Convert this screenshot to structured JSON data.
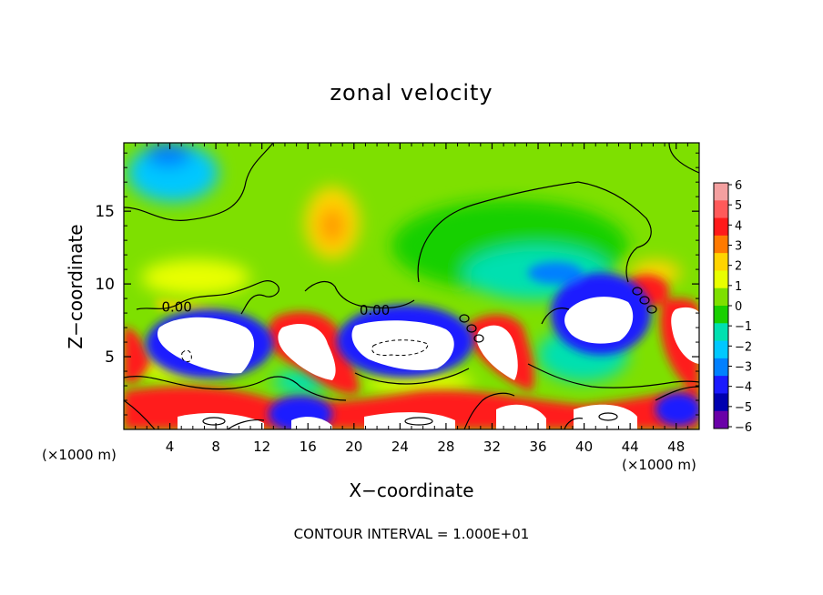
{
  "chart_data": {
    "type": "heatmap",
    "title": "zonal velocity",
    "xlabel": "X−coordinate",
    "ylabel": "Z−coordinate",
    "x_unit_label": "(×1000 m)",
    "x_ticks": [
      4,
      8,
      12,
      16,
      20,
      24,
      28,
      32,
      36,
      40,
      44,
      48
    ],
    "y_ticks": [
      5,
      10,
      15
    ],
    "xlim": [
      0,
      50
    ],
    "ylim": [
      0,
      19.7
    ],
    "colorbar": {
      "ticks": [
        6,
        5,
        4,
        3,
        2,
        1,
        0,
        -1,
        -2,
        -3,
        -4,
        -5,
        -6
      ],
      "tick_labels": [
        "6",
        "5",
        "4",
        "3",
        "2",
        "1",
        "0",
        "−1",
        "−2",
        "−3",
        "−4",
        "−5",
        "−6"
      ],
      "colors": [
        "#f4a0a0",
        "#ff5a5a",
        "#ff1a1a",
        "#ff7a00",
        "#ffd400",
        "#e9ff00",
        "#7ee000",
        "#19d000",
        "#00e0b0",
        "#00c8ff",
        "#0080ff",
        "#1a1aff",
        "#0000b0",
        "#6a00a8"
      ]
    },
    "contour_labels": [
      {
        "text": "0.00",
        "x": 4.6,
        "z": 8.4
      },
      {
        "text": "0.00",
        "x": 21.8,
        "z": 8.2
      }
    ],
    "footer": "CONTOUR INTERVAL = 1.000E+01"
  }
}
